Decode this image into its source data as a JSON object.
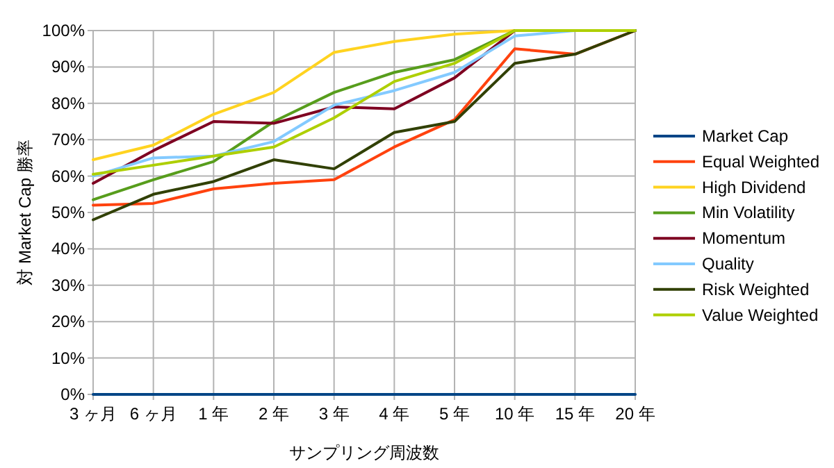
{
  "chart_data": {
    "type": "line",
    "xlabel": "サンプリング周波数",
    "ylabel": "対 Market Cap 勝率",
    "categories": [
      "3 ヶ月",
      "6 ヶ月",
      "1 年",
      "2 年",
      "3 年",
      "4 年",
      "5 年",
      "10 年",
      "15 年",
      "20 年"
    ],
    "ylim": [
      0,
      100
    ],
    "yticks": [
      {
        "value": 0,
        "label": "0%"
      },
      {
        "value": 10,
        "label": "10%"
      },
      {
        "value": 20,
        "label": "20%"
      },
      {
        "value": 30,
        "label": "30%"
      },
      {
        "value": 40,
        "label": "40%"
      },
      {
        "value": 50,
        "label": "50%"
      },
      {
        "value": 60,
        "label": "60%"
      },
      {
        "value": 70,
        "label": "70%"
      },
      {
        "value": 80,
        "label": "80%"
      },
      {
        "value": 90,
        "label": "90%"
      },
      {
        "value": 100,
        "label": "100%"
      }
    ],
    "grid": true,
    "legend": "right",
    "marker": "none",
    "line_style": "solid",
    "series": [
      {
        "name": "Market Cap",
        "color": "#004586",
        "values": [
          0,
          0,
          0,
          0,
          0,
          0,
          0,
          0,
          0,
          0
        ]
      },
      {
        "name": "Equal Weighted",
        "color": "#ff420e",
        "values": [
          52,
          52.5,
          56.5,
          58,
          59,
          68,
          75.5,
          95,
          93.5,
          100
        ]
      },
      {
        "name": "High Dividend",
        "color": "#ffd320",
        "values": [
          64.5,
          68.5,
          77,
          83,
          94,
          97,
          99,
          100,
          100,
          100
        ]
      },
      {
        "name": "Min Volatility",
        "color": "#579d1c",
        "values": [
          53.5,
          59,
          64,
          75,
          83,
          88.5,
          92,
          100,
          100,
          100
        ]
      },
      {
        "name": "Momentum",
        "color": "#7e0021",
        "values": [
          58,
          67,
          75,
          74.5,
          79,
          78.5,
          87,
          100,
          100,
          100
        ]
      },
      {
        "name": "Quality",
        "color": "#83caff",
        "values": [
          60,
          65,
          65.5,
          69.5,
          79.5,
          83.5,
          88.5,
          98.5,
          100,
          100
        ]
      },
      {
        "name": "Risk Weighted",
        "color": "#314004",
        "values": [
          48,
          55,
          58.5,
          64.5,
          62,
          72,
          75,
          91,
          93.5,
          100
        ]
      },
      {
        "name": "Value Weighted",
        "color": "#aecf00",
        "values": [
          60.5,
          63,
          65.5,
          68,
          76,
          86,
          91,
          100,
          100,
          100
        ]
      }
    ]
  }
}
